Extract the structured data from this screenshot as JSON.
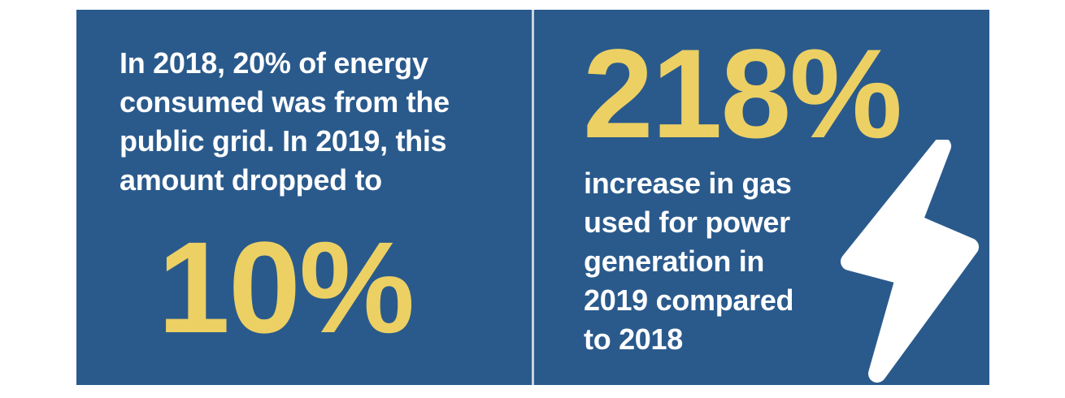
{
  "left_panel": {
    "lines": [
      "In 2018, 20% of energy",
      "consumed was from the",
      "public grid. In 2019, this",
      "amount dropped to"
    ],
    "big_stat": "10%"
  },
  "right_panel": {
    "big_stat": "218%",
    "lines": [
      "increase in gas",
      "used for power",
      "generation in",
      "2019 compared",
      "to 2018"
    ],
    "icon": "lightning-bolt-icon"
  },
  "colors": {
    "panel_bg": "#2a5a8c",
    "stat_yellow": "#ecd063",
    "text_white": "#ffffff"
  }
}
